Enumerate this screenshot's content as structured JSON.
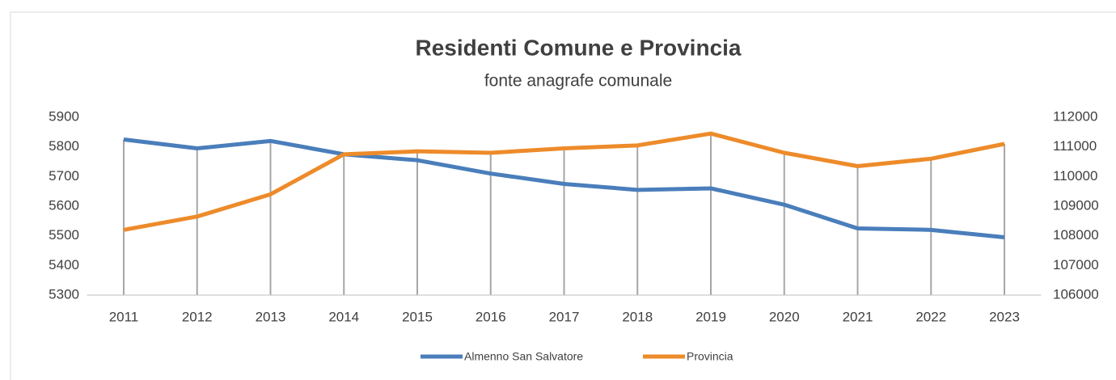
{
  "chart_data": {
    "type": "line",
    "title": "Residenti Comune e Provincia",
    "subtitle": "fonte anagrafe comunale",
    "categories": [
      "2011",
      "2012",
      "2013",
      "2014",
      "2015",
      "2016",
      "2017",
      "2018",
      "2019",
      "2020",
      "2021",
      "2022",
      "2023"
    ],
    "series": [
      {
        "name": "Almenno San Salvatore",
        "color": "#4a7ebb",
        "values": [
          5825,
          5795,
          5820,
          5775,
          5755,
          5710,
          5675,
          5655,
          5660,
          5605,
          5525,
          5520,
          5495
        ]
      },
      {
        "name": "Provincia",
        "color": "#ed8b2a",
        "axis": "y2",
        "values": [
          108200,
          108650,
          109400,
          110750,
          110850,
          110800,
          110950,
          111050,
          111450,
          110800,
          110350,
          110600,
          111100
        ]
      }
    ],
    "ylim": [
      5300,
      5900
    ],
    "yticks": [
      5300,
      5400,
      5500,
      5600,
      5700,
      5800,
      5900
    ],
    "y2lim": [
      106000,
      112000
    ],
    "y2ticks": [
      106000,
      107000,
      108000,
      109000,
      110000,
      111000,
      112000
    ],
    "drop_lines": true,
    "legend": "bottom"
  }
}
